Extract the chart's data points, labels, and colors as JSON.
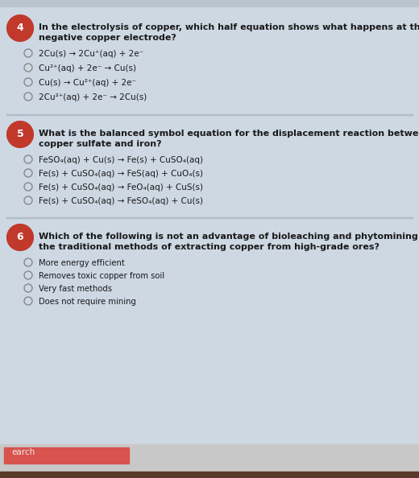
{
  "bg_color": "#cdd8e3",
  "text_color": "#1a1a1a",
  "question_circle_color": "#c0392b",
  "question_circle_edge": "#c0392b",
  "question_circle_text": "#ffffff",
  "option_circle_color": "#888888",
  "q4_number": "4",
  "q4_question_line1": "In the electrolysis of copper, which half equation shows what happens at the",
  "q4_question_line2": "negative copper electrode?",
  "q4_options": [
    "2Cu(s) → 2Cu⁺(aq) + 2e⁻",
    "Cu²⁺(aq) + 2e⁻ → Cu(s)",
    "Cu(s) → Cu²⁺(aq) + 2e⁻",
    "2Cu²⁺(aq) + 2e⁻ → 2Cu(s)"
  ],
  "q5_number": "5",
  "q5_question_line1": "What is the balanced symbol equation for the displacement reaction between",
  "q5_question_line2": "copper sulfate and iron?",
  "q5_options": [
    "FeSO₄(aq) + Cu(s) → Fe(s) + CuSO₄(aq)",
    "Fe(s) + CuSO₄(aq) → FeS(aq) + CuO₄(s)",
    "Fe(s) + CuSO₄(aq) → FeO₄(aq) + CuS(s)",
    "Fe(s) + CuSO₄(aq) → FeSO₄(aq) + Cu(s)"
  ],
  "q6_number": "6",
  "q6_question_line1": "Which of the following is not an advantage of bioleaching and phytomining over",
  "q6_question_line2": "the traditional methods of extracting copper from high-grade ores?",
  "q6_options": [
    "More energy efficient",
    "Removes toxic copper from soil",
    "Very fast methods",
    "Does not require mining"
  ],
  "taskbar_bg": "#c8c8c8",
  "taskbar_search_color": "#d9534f",
  "taskbar_search_text": "earch",
  "top_strip_color": "#b8c4ce",
  "font_size_q": 8.0,
  "font_size_opt": 7.5,
  "font_size_num": 9.0,
  "font_size_small_opt": 7.2
}
